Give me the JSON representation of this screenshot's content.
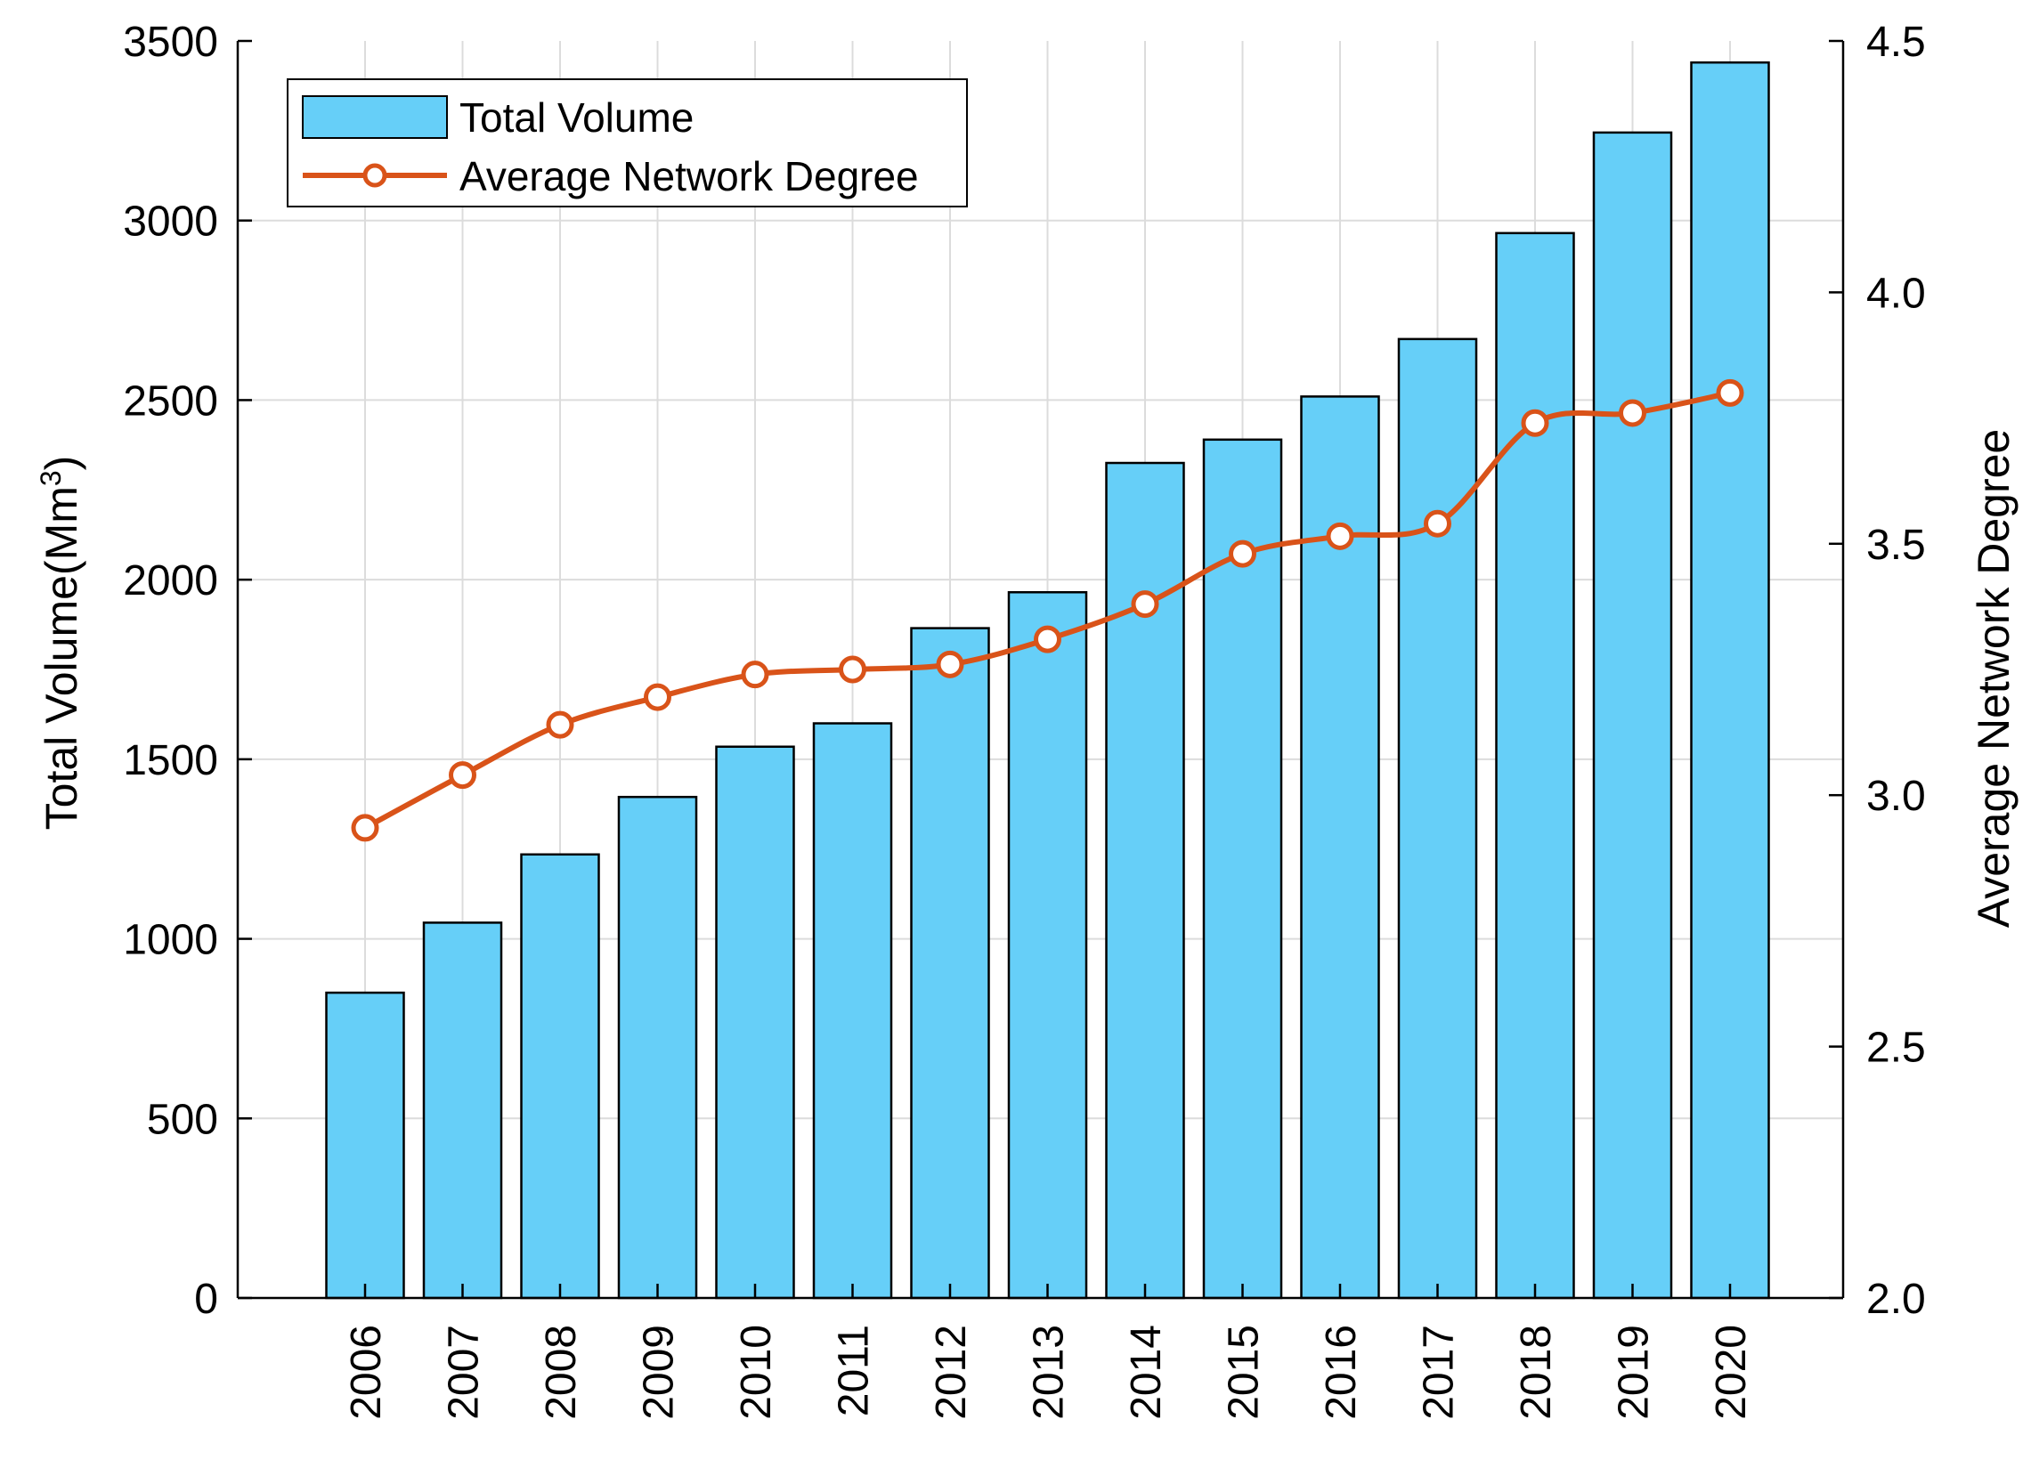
{
  "chart_data": {
    "type": "bar",
    "categories": [
      "2006",
      "2007",
      "2008",
      "2009",
      "2010",
      "2011",
      "2012",
      "2013",
      "2014",
      "2015",
      "2016",
      "2017",
      "2018",
      "2019",
      "2020"
    ],
    "series": [
      {
        "name": "Total Volume",
        "type": "bar",
        "axis": "left",
        "color": "#66CFF8",
        "values": [
          850,
          1045,
          1235,
          1395,
          1535,
          1600,
          1865,
          1965,
          2325,
          2390,
          2510,
          2670,
          2965,
          3245,
          3440
        ]
      },
      {
        "name": "Average Network Degree",
        "type": "line",
        "axis": "right",
        "color": "#D95319",
        "values": [
          2.935,
          3.04,
          3.14,
          3.195,
          3.24,
          3.25,
          3.26,
          3.31,
          3.38,
          3.48,
          3.515,
          3.54,
          3.74,
          3.76,
          3.8
        ]
      }
    ],
    "y_left": {
      "label_main": "Total Volume(Mm",
      "label_sup": "3",
      "label_close": ")",
      "ylim": [
        0,
        3500
      ],
      "ticks": [
        "0",
        "500",
        "1000",
        "1500",
        "2000",
        "2500",
        "3000",
        "3500"
      ]
    },
    "y_right": {
      "label": "Average Network Degree",
      "ylim": [
        2.0,
        4.5
      ],
      "ticks": [
        "2.0",
        "2.5",
        "3.0",
        "3.5",
        "4.0",
        "4.5"
      ]
    },
    "grid": true,
    "legend": {
      "placement": "top-left",
      "entries": [
        "Total Volume",
        "Average Network Degree"
      ]
    },
    "colors": {
      "bar_fill": "#66CFF8",
      "bar_edge": "#000000",
      "line": "#D95319",
      "grid": "#DCDCDC",
      "axis": "#000000"
    }
  }
}
